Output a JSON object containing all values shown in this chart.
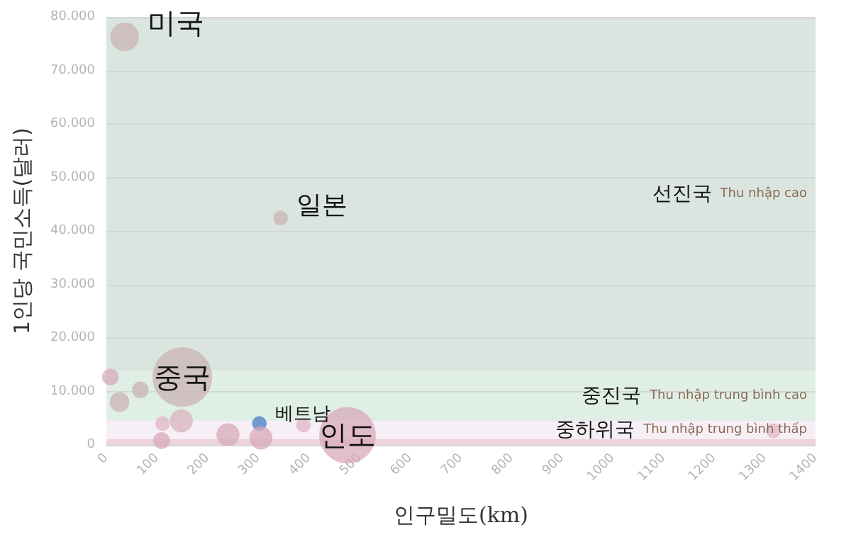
{
  "chart_data": {
    "type": "bubble",
    "xlabel": "인구밀도(km)",
    "ylabel": "1인당 국민소득(달러)",
    "x": [
      36,
      344,
      150,
      476,
      302,
      8,
      26,
      67,
      111,
      148,
      109,
      240,
      305,
      389,
      1317
    ],
    "values": [
      76300,
      42400,
      12700,
      1800,
      4000,
      12700,
      8000,
      10300,
      4000,
      4500,
      800,
      1900,
      1300,
      3700,
      2600
    ],
    "sizes": [
      0.23,
      0.06,
      1,
      0.9,
      0.06,
      0.08,
      0.11,
      0.08,
      0.06,
      0.15,
      0.08,
      0.15,
      0.15,
      0.06,
      0.06
    ],
    "colors": [
      "#c9b3b3",
      "#c9b3b3",
      "#c9b3b3",
      "#d8a9b9",
      "#4a7cc4",
      "#d8a9b9",
      "#c9b3b3",
      "#c9b3b3",
      "#e2b6c6",
      "#d8b3bd",
      "#d8a9b9",
      "#d8a9b9",
      "#d8a9b9",
      "#e2b6c6",
      "#e2b6c6"
    ],
    "xlim": [
      0,
      1400
    ],
    "xticks": [
      0,
      100,
      200,
      300,
      400,
      500,
      600,
      700,
      800,
      900,
      1000,
      1100,
      1200,
      1300,
      1400
    ],
    "ylim": [
      0,
      80000
    ],
    "yticks": [
      0,
      {
        "value": 10000,
        "label": "10.000"
      },
      {
        "value": 20000,
        "label": "20.000"
      },
      {
        "value": 30000,
        "label": "30.000"
      },
      {
        "value": 40000,
        "label": "40.000"
      },
      {
        "value": 50000,
        "label": "50.000"
      },
      {
        "value": 60000,
        "label": "60.000"
      },
      {
        "value": 70000,
        "label": "70.000"
      },
      {
        "value": 80000,
        "label": "80.000"
      }
    ],
    "grid": "y",
    "bands": [
      {
        "axis": "y",
        "from": 13800,
        "to": 80000,
        "label": "선진국",
        "color": "#dbe5df"
      },
      {
        "axis": "y",
        "from": 4500,
        "to": 13800,
        "label": "중진국",
        "color": "#e0efe6"
      },
      {
        "axis": "y",
        "from": 1100,
        "to": 4500,
        "label": "중하위국",
        "color": "#f6eff5"
      },
      {
        "axis": "y",
        "from": 0,
        "to": 1100,
        "color": "#ecd3dc"
      }
    ],
    "annotations": [
      {
        "text": "미국",
        "x": 36,
        "y": 76300
      },
      {
        "text": "일본",
        "x": 344,
        "y": 42400
      },
      {
        "text": "중국",
        "x": 150,
        "y": 12700
      },
      {
        "text": "인도",
        "x": 476,
        "y": 1800
      },
      {
        "text": "베트남",
        "x": 302,
        "y": 4000
      },
      "Thu nhập cao",
      "Thu nhập trung bình cao",
      "Thu nhập trung bình thấp"
    ]
  }
}
